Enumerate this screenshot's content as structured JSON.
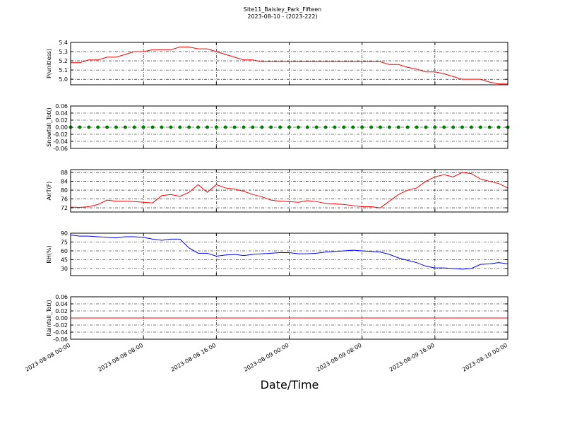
{
  "title": "Site11_Baisley_Park_Fifteen",
  "subtitle": "2023-08-10 - (2023-222)",
  "x_label": "Date/Time",
  "shared_x": {
    "x": [
      "2023-08-08 00:00",
      "2023-08-08 01:00",
      "2023-08-08 02:00",
      "2023-08-08 03:00",
      "2023-08-08 04:00",
      "2023-08-08 05:00",
      "2023-08-08 06:00",
      "2023-08-08 07:00",
      "2023-08-08 08:00",
      "2023-08-08 09:00",
      "2023-08-08 10:00",
      "2023-08-08 11:00",
      "2023-08-08 12:00",
      "2023-08-08 13:00",
      "2023-08-08 14:00",
      "2023-08-08 15:00",
      "2023-08-08 16:00",
      "2023-08-08 17:00",
      "2023-08-08 18:00",
      "2023-08-08 19:00",
      "2023-08-08 20:00",
      "2023-08-08 21:00",
      "2023-08-08 22:00",
      "2023-08-08 23:00",
      "2023-08-09 00:00",
      "2023-08-09 01:00",
      "2023-08-09 02:00",
      "2023-08-09 03:00",
      "2023-08-09 04:00",
      "2023-08-09 05:00",
      "2023-08-09 06:00",
      "2023-08-09 07:00",
      "2023-08-09 08:00",
      "2023-08-09 09:00",
      "2023-08-09 10:00",
      "2023-08-09 11:00",
      "2023-08-09 12:00",
      "2023-08-09 13:00",
      "2023-08-09 14:00",
      "2023-08-09 15:00",
      "2023-08-09 16:00",
      "2023-08-09 17:00",
      "2023-08-09 18:00",
      "2023-08-09 19:00",
      "2023-08-09 20:00",
      "2023-08-09 21:00",
      "2023-08-09 22:00",
      "2023-08-09 23:00",
      "2023-08-10 00:00"
    ],
    "xlim": [
      "2023-08-08 00:00",
      "2023-08-10 00:00"
    ],
    "xticks": [
      "2023-08-08 00:00",
      "2023-08-08 08:00",
      "2023-08-08 16:00",
      "2023-08-09 00:00",
      "2023-08-09 08:00",
      "2023-08-09 16:00",
      "2023-08-10 00:00"
    ]
  },
  "chart_data": [
    {
      "type": "line",
      "y_label": "P(unitless)",
      "ylim": [
        4.94,
        5.4
      ],
      "yticks": [
        {
          "value": 5.0,
          "label": "5.0"
        },
        5.1,
        5.2,
        5.3,
        5.4
      ],
      "grid": true,
      "series": [
        {
          "color": "#ff0000",
          "values": [
            5.18,
            5.18,
            5.21,
            5.21,
            5.24,
            5.24,
            5.27,
            5.3,
            5.3,
            5.32,
            5.32,
            5.32,
            5.35,
            5.35,
            5.33,
            5.33,
            5.3,
            5.27,
            5.24,
            5.21,
            5.21,
            5.19,
            5.19,
            5.19,
            5.19,
            5.19,
            5.19,
            5.19,
            5.19,
            5.19,
            5.19,
            5.19,
            5.19,
            5.19,
            5.19,
            5.16,
            5.16,
            5.13,
            5.11,
            5.08,
            5.08,
            5.06,
            5.03,
            5.0,
            5.0,
            5.0,
            4.97,
            4.95,
            4.95
          ]
        }
      ]
    },
    {
      "type": "scatter",
      "y_label": "Snowfall_Tot()",
      "ylim": [
        -0.06,
        0.06
      ],
      "yticks": [
        -0.06,
        -0.04,
        -0.02,
        {
          "value": 0,
          "label": "0.00"
        },
        0.02,
        0.04,
        0.06
      ],
      "grid": true,
      "series": [
        {
          "color": "#008000",
          "values": [
            0,
            0,
            0,
            0,
            0,
            0,
            0,
            0,
            0,
            0,
            0,
            0,
            0,
            0,
            0,
            0,
            0,
            0,
            0,
            0,
            0,
            0,
            0,
            0,
            0,
            0,
            0,
            0,
            0,
            0,
            0,
            0,
            0,
            0,
            0,
            0,
            0,
            0,
            0,
            0,
            0,
            0,
            0,
            0,
            0,
            0,
            0,
            0,
            0
          ]
        }
      ]
    },
    {
      "type": "line",
      "y_label": "AirT(F)",
      "ylim": [
        70.1,
        89.3
      ],
      "yticks": [
        72,
        76,
        80,
        84,
        88
      ],
      "grid": true,
      "series": [
        {
          "color": "#ff0000",
          "values": [
            72.3,
            72.2,
            72.5,
            73.5,
            75.5,
            75,
            75,
            74.8,
            74.5,
            74.2,
            77.5,
            78,
            77.2,
            79,
            82.5,
            79,
            82.5,
            81,
            80.5,
            79.5,
            78,
            77,
            75.5,
            75,
            74.8,
            74.5,
            75.2,
            74.8,
            74,
            73.8,
            73.5,
            73,
            72.5,
            72.5,
            72,
            75,
            78,
            80,
            81,
            84,
            86,
            87,
            86,
            88,
            87.5,
            85,
            84,
            83,
            81
          ]
        }
      ]
    },
    {
      "type": "line",
      "y_label": "RH(%)",
      "ylim": [
        18,
        90
      ],
      "yticks": [
        30,
        45,
        60,
        75,
        90
      ],
      "grid": true,
      "series": [
        {
          "color": "#0000ff",
          "values": [
            87,
            85,
            85,
            84,
            83,
            82,
            84,
            84,
            83,
            80,
            78,
            80,
            80,
            65,
            56,
            56,
            51,
            53,
            54,
            52,
            54,
            55,
            56,
            57,
            57,
            55,
            55,
            56,
            58,
            59,
            60,
            61,
            60,
            59,
            58,
            54,
            48,
            44,
            40,
            34,
            31,
            31,
            30,
            29,
            30,
            37,
            38,
            40,
            38
          ]
        }
      ]
    },
    {
      "type": "line",
      "y_label": "Rainfall_Tot()",
      "ylim": [
        -0.06,
        0.06
      ],
      "yticks": [
        -0.06,
        -0.04,
        -0.02,
        {
          "value": 0,
          "label": "0.00"
        },
        0.02,
        0.04,
        0.06
      ],
      "grid": true,
      "series": [
        {
          "color": "#ff0000",
          "values": [
            0,
            0,
            0,
            0,
            0,
            0,
            0,
            0,
            0,
            0,
            0,
            0,
            0,
            0,
            0,
            0,
            0,
            0,
            0,
            0,
            0,
            0,
            0,
            0,
            0,
            0,
            0,
            0,
            0,
            0,
            0,
            0,
            0,
            0,
            0,
            0,
            0,
            0,
            0,
            0,
            0,
            0,
            0,
            0,
            0,
            0,
            0,
            0,
            0
          ]
        }
      ]
    }
  ]
}
